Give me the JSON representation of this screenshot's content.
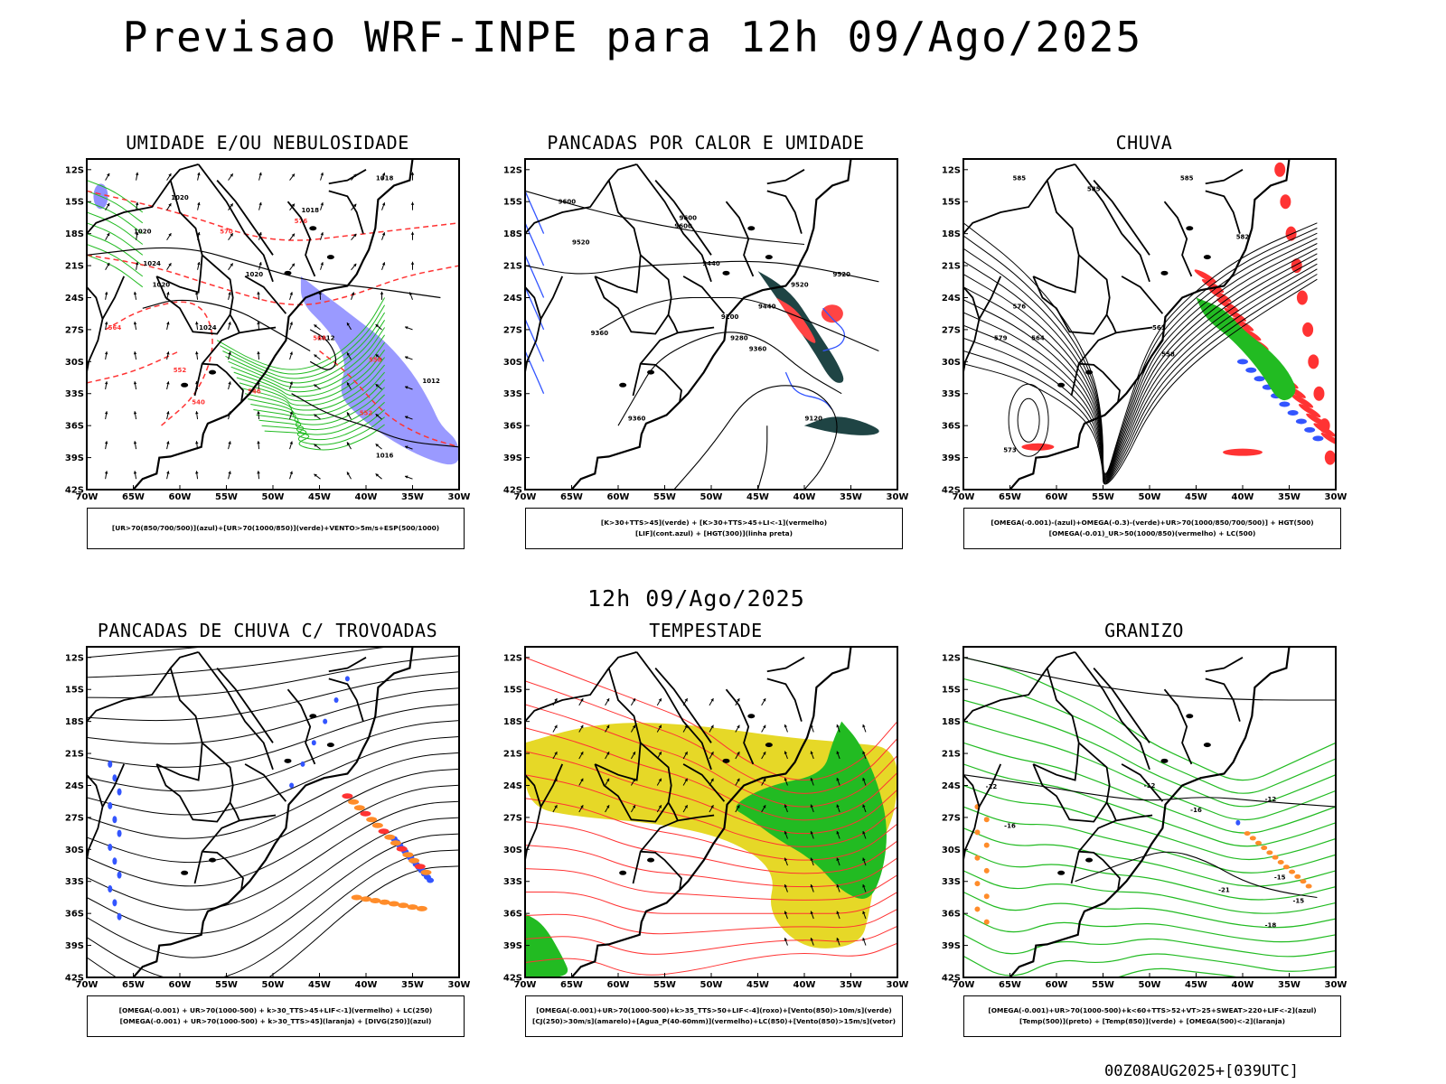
{
  "header": {
    "title": "Previsao WRF-INPE  para 12h 09/Ago/2025"
  },
  "middle_label": "12h 09/Ago/2025",
  "footer": {
    "run_stamp": "00Z08AUG2025+[039UTC]"
  },
  "axes": {
    "lat_ticks": [
      "12S",
      "15S",
      "18S",
      "21S",
      "24S",
      "27S",
      "30S",
      "33S",
      "36S",
      "39S",
      "42S"
    ],
    "lon_ticks": [
      "70W",
      "65W",
      "60W",
      "55W",
      "50W",
      "45W",
      "40W",
      "35W",
      "30W"
    ]
  },
  "colors": {
    "red": "#ff3333",
    "green": "#22bb22",
    "blue": "#3355ff",
    "violet": "#8f8fff",
    "orange": "#ff8c2a",
    "yellow": "#e6d827",
    "darkteal": "#1f4444"
  },
  "panels": [
    {
      "id": "umidade",
      "title": "UMIDADE E/OU NEBULOSIDADE",
      "legend": [
        "[UR>70(850/700/500)](azul)+[UR>70(1000/850)](verde)+VENTO>5m/s+ESP(500/1000)"
      ],
      "contour_labels": [
        "1018",
        "1020",
        "1018",
        "1024",
        "1024",
        "1020",
        "1012",
        "1012",
        "1016",
        "1020",
        "1020",
        "552",
        "570",
        "576",
        "564",
        "558",
        "546",
        "552",
        "540",
        "564"
      ]
    },
    {
      "id": "pancadas_calor",
      "title": "PANCADAS POR CALOR E UMIDADE",
      "legend": [
        "[K>30+TTS>45](verde) + [K>30+TTS>45+LI<-1](vermelho)",
        "[LIF](cont.azul) + [HGT(300)](linha preta)"
      ],
      "contour_labels": [
        "9600",
        "9600",
        "9520",
        "9360",
        "9440",
        "9520",
        "9200",
        "9280",
        "9360",
        "9440",
        "9520",
        "9120",
        "9360",
        "9600"
      ]
    },
    {
      "id": "chuva",
      "title": "CHUVA",
      "legend": [
        "[OMEGA(-0.001)-(azul)+OMEGA(-0.3)-(verde)+UR>70(1000/850/700/500)] + HGT(500)",
        "[OMEGA(-0.01)_UR>50(1000/850)(vermelho) + LC(500)"
      ],
      "contour_labels": [
        "585",
        "585",
        "585",
        "582",
        "579",
        "576",
        "573",
        "558",
        "561",
        "564"
      ]
    },
    {
      "id": "pancadas_trovoadas",
      "title": "PANCADAS DE CHUVA C/ TROVOADAS",
      "legend": [
        "[OMEGA(-0.001) + UR>70(1000-500) + k>30_TTS>45+LIF<-1](vermelho) + LC(250)",
        "[OMEGA(-0.001) + UR>70(1000-500) + k>30_TTS>45](laranja) + [DIVG(250)](azul)"
      ]
    },
    {
      "id": "tempestade",
      "title": "TEMPESTADE",
      "legend": [
        "[OMEGA(-0.001)+UR>70(1000-500)+k>35_TTS>50+LIF<-4](roxo)+[Vento(850)>10m/s](verde)",
        "[CJ(250)>30m/s](amarelo)+[Agua_P(40-60mm)](vermelho)+LC(850)+[Vento(850)>15m/s](vetor)"
      ]
    },
    {
      "id": "granizo",
      "title": "GRANIZO",
      "legend": [
        "[OMEGA(-0.001)+UR>70(1000-500)+k<60+TTS>52+VT>25+SWEAT>220+LIF<-2](azul)",
        "[Temp(500)](preto) + [Temp(850)](verde) + [OMEGA(500)<-2](laranja)"
      ],
      "contour_labels": [
        "-12",
        "-15",
        "-16",
        "-12",
        "-21",
        "-15",
        "-18",
        "-12",
        "-16"
      ]
    }
  ]
}
